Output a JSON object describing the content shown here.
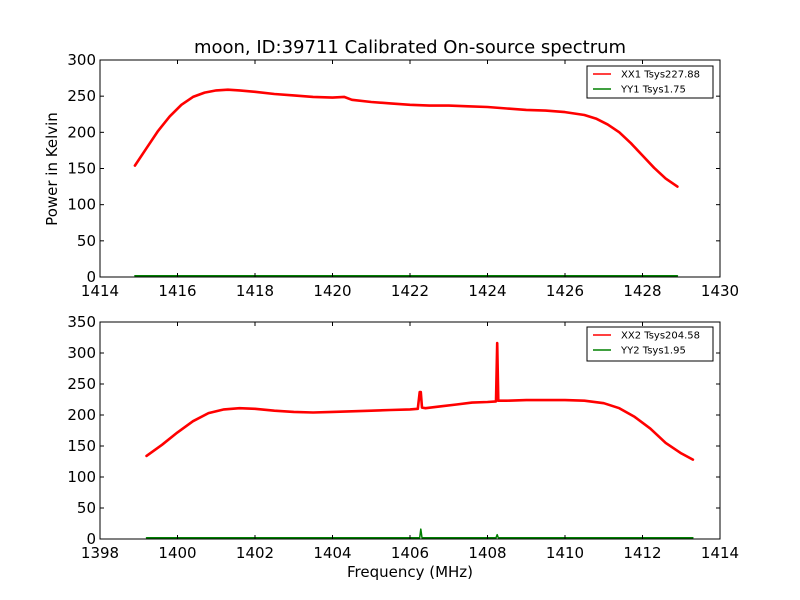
{
  "chart_data": [
    {
      "type": "line",
      "title": "moon, ID:39711 Calibrated On-source spectrum",
      "xlabel": "",
      "ylabel": "Power in Kelvin",
      "xlim": [
        1414,
        1430
      ],
      "ylim": [
        0,
        300
      ],
      "xticks": [
        1414,
        1416,
        1418,
        1420,
        1422,
        1424,
        1426,
        1428,
        1430
      ],
      "yticks": [
        0,
        50,
        100,
        150,
        200,
        250,
        300
      ],
      "legend_position": "top-right",
      "series": [
        {
          "name": "XX1 Tsys227.88",
          "color": "#ff0000",
          "x": [
            1414.9,
            1415.2,
            1415.5,
            1415.8,
            1416.1,
            1416.4,
            1416.7,
            1417.0,
            1417.3,
            1417.6,
            1418.0,
            1418.5,
            1419.0,
            1419.5,
            1420.0,
            1420.3,
            1420.5,
            1421.0,
            1421.5,
            1422.0,
            1422.5,
            1423.0,
            1423.5,
            1424.0,
            1424.5,
            1425.0,
            1425.5,
            1426.0,
            1426.5,
            1426.8,
            1427.1,
            1427.4,
            1427.7,
            1428.0,
            1428.3,
            1428.6,
            1428.9
          ],
          "y": [
            154,
            178,
            202,
            222,
            238,
            249,
            255,
            258,
            259,
            258,
            256,
            253,
            251,
            249,
            248,
            249,
            245,
            242,
            240,
            238,
            237,
            237,
            236,
            235,
            233,
            231,
            230,
            228,
            224,
            219,
            211,
            200,
            185,
            168,
            151,
            136,
            125
          ]
        },
        {
          "name": "YY1 Tsys1.75",
          "color": "#008000",
          "x": [
            1414.9,
            1428.9
          ],
          "y": [
            1.75,
            1.75
          ]
        }
      ]
    },
    {
      "type": "line",
      "title": "",
      "xlabel": "Frequency (MHz)",
      "ylabel": "",
      "xlim": [
        1398,
        1414
      ],
      "ylim": [
        0,
        350
      ],
      "xticks": [
        1398,
        1400,
        1402,
        1404,
        1406,
        1408,
        1410,
        1412,
        1414
      ],
      "yticks": [
        0,
        50,
        100,
        150,
        200,
        250,
        300,
        350
      ],
      "legend_position": "top-right",
      "series": [
        {
          "name": "XX2 Tsys204.58",
          "color": "#ff0000",
          "x": [
            1399.2,
            1399.6,
            1400.0,
            1400.4,
            1400.8,
            1401.2,
            1401.6,
            1402.0,
            1402.5,
            1403.0,
            1403.5,
            1404.0,
            1404.5,
            1405.0,
            1405.5,
            1406.0,
            1406.2,
            1406.25,
            1406.28,
            1406.31,
            1406.4,
            1406.8,
            1407.2,
            1407.6,
            1408.0,
            1408.22,
            1408.25,
            1408.28,
            1408.5,
            1409.0,
            1409.5,
            1410.0,
            1410.5,
            1411.0,
            1411.4,
            1411.8,
            1412.2,
            1412.6,
            1413.0,
            1413.3
          ],
          "y": [
            134,
            152,
            172,
            190,
            203,
            209,
            211,
            210,
            207,
            205,
            204,
            205,
            206,
            207,
            208,
            209,
            210,
            237,
            237,
            212,
            211,
            214,
            217,
            220,
            221,
            222,
            316,
            223,
            223,
            224,
            224,
            224,
            223,
            219,
            211,
            197,
            178,
            155,
            138,
            128
          ]
        },
        {
          "name": "YY2 Tsys1.95",
          "color": "#008000",
          "x": [
            1399.2,
            1406.25,
            1406.28,
            1406.31,
            1408.22,
            1408.25,
            1408.28,
            1413.3
          ],
          "y": [
            1.95,
            1.95,
            16,
            1.95,
            1.95,
            7,
            1.95,
            1.95
          ]
        }
      ]
    }
  ]
}
